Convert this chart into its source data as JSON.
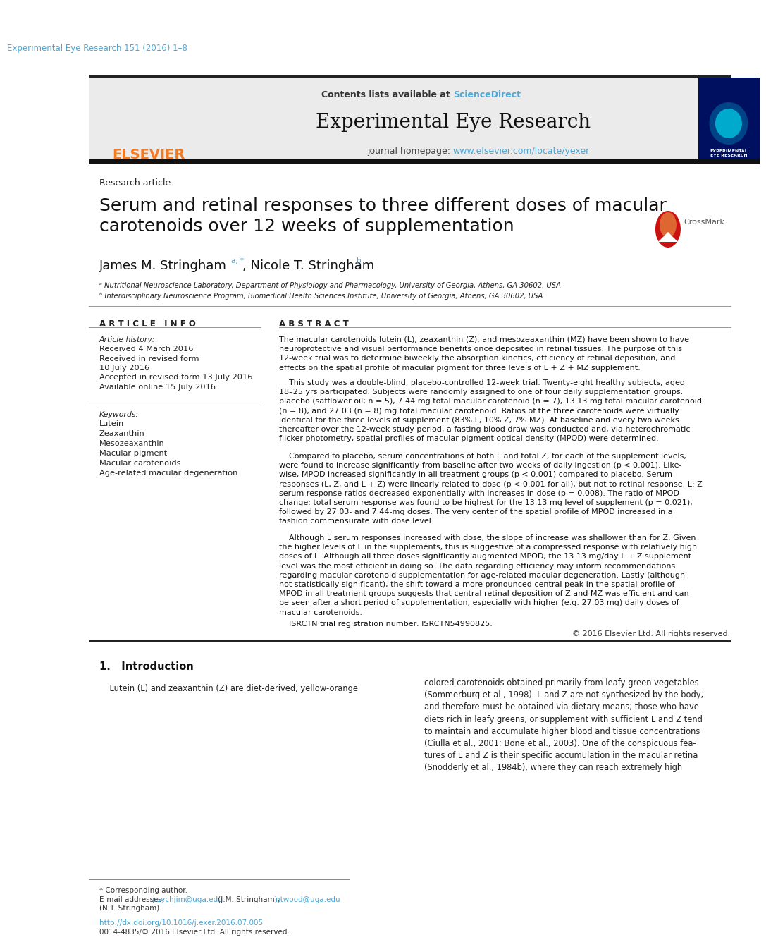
{
  "page_citation": "Experimental Eye Research 151 (2016) 1–8",
  "journal_name": "Experimental Eye Research",
  "contents_line": "Contents lists available at ScienceDirect",
  "homepage_prefix": "journal homepage: ",
  "homepage_url": "www.elsevier.com/locate/yexer",
  "article_type": "Research article",
  "title": "Serum and retinal responses to three different doses of macular\ncarotenoids over 12 weeks of supplementation",
  "authors": "James M. Stringham",
  "author_sup1": "a, *",
  "author2": ", Nicole T. Stringham",
  "author_sup2": "b",
  "affil_a": "ᵃ Nutritional Neuroscience Laboratory, Department of Physiology and Pharmacology, University of Georgia, Athens, GA 30602, USA",
  "affil_b": "ᵇ Interdisciplinary Neuroscience Program, Biomedical Health Sciences Institute, University of Georgia, Athens, GA 30602, USA",
  "article_info_header": "A R T I C L E   I N F O",
  "article_history_label": "Article history:",
  "history_lines": [
    "Received 4 March 2016",
    "Received in revised form",
    "10 July 2016",
    "Accepted in revised form 13 July 2016",
    "Available online 15 July 2016"
  ],
  "keywords_label": "Keywords:",
  "keywords": [
    "Lutein",
    "Zeaxanthin",
    "Mesozeaxanthin",
    "Macular pigment",
    "Macular carotenoids",
    "Age-related macular degeneration"
  ],
  "abstract_header": "A B S T R A C T",
  "abstract_p1": "The macular carotenoids lutein (L), zeaxanthin (Z), and mesozeaxanthin (MZ) have been shown to have\nneuroprotective and visual performance benefits once deposited in retinal tissues. The purpose of this\n12-week trial was to determine biweekly the absorption kinetics, efficiency of retinal deposition, and\neffects on the spatial profile of macular pigment for three levels of L + Z + MZ supplement.",
  "abstract_p2": "    This study was a double-blind, placebo-controlled 12-week trial. Twenty-eight healthy subjects, aged\n18–25 yrs participated. Subjects were randomly assigned to one of four daily supplementation groups:\nplacebo (safflower oil; n = 5), 7.44 mg total macular carotenoid (n = 7), 13.13 mg total macular carotenoid\n(n = 8), and 27.03 (n = 8) mg total macular carotenoid. Ratios of the three carotenoids were virtually\nidentical for the three levels of supplement (83% L, 10% Z, 7% MZ). At baseline and every two weeks\nthereafter over the 12-week study period, a fasting blood draw was conducted and, via heterochromatic\nflicker photometry, spatial profiles of macular pigment optical density (MPOD) were determined.",
  "abstract_p3": "    Compared to placebo, serum concentrations of both L and total Z, for each of the supplement levels,\nwere found to increase significantly from baseline after two weeks of daily ingestion (p < 0.001). Like-\nwise, MPOD increased significantly in all treatment groups (p < 0.001) compared to placebo. Serum\nresponses (L, Z, and L + Z) were linearly related to dose (p < 0.001 for all), but not to retinal response. L: Z\nserum response ratios decreased exponentially with increases in dose (p = 0.008). The ratio of MPOD\nchange: total serum response was found to be highest for the 13.13 mg level of supplement (p = 0.021),\nfollowed by 27.03- and 7.44-mg doses. The very center of the spatial profile of MPOD increased in a\nfashion commensurate with dose level.",
  "abstract_p4": "    Although L serum responses increased with dose, the slope of increase was shallower than for Z. Given\nthe higher levels of L in the supplements, this is suggestive of a compressed response with relatively high\ndoses of L. Although all three doses significantly augmented MPOD, the 13.13 mg/day L + Z supplement\nlevel was the most efficient in doing so. The data regarding efficiency may inform recommendations\nregarding macular carotenoid supplementation for age-related macular degeneration. Lastly (although\nnot statistically significant), the shift toward a more pronounced central peak in the spatial profile of\nMPOD in all treatment groups suggests that central retinal deposition of Z and MZ was efficient and can\nbe seen after a short period of supplementation, especially with higher (e.g. 27.03 mg) daily doses of\nmacular carotenoids.",
  "abstract_trial": "    ISRCTN trial registration number: ISRCTN54990825.",
  "abstract_copyright": "© 2016 Elsevier Ltd. All rights reserved.",
  "section_intro": "1.   Introduction",
  "intro_p1": "    Lutein (L) and zeaxanthin (Z) are diet-derived, yellow-orange",
  "intro_p2_right": "colored carotenoids obtained primarily from leafy-green vegetables\n(Sommerburg et al., 1998). L and Z are not synthesized by the body,\nand therefore must be obtained via dietary means; those who have\ndiets rich in leafy greens, or supplement with sufficient L and Z tend\nto maintain and accumulate higher blood and tissue concentrations\n(Ciulla et al., 2001; Bone et al., 2003). One of the conspicuous fea-\ntures of L and Z is their specific accumulation in the macular retina\n(Snodderly et al., 1984b), where they can reach extremely high",
  "footnote_star": "* Corresponding author.",
  "footnote_email_label": "E-mail addresses: ",
  "footnote_email1": "psychjim@uga.edu",
  "footnote_email1_name": " (J.M. Stringham), ",
  "footnote_email2": "ntwood@uga.edu",
  "footnote_nt": "(N.T. Stringham).",
  "doi_line": "http://dx.doi.org/10.1016/j.exer.2016.07.005",
  "issn_line": "0014-4835/© 2016 Elsevier Ltd. All rights reserved.",
  "bg_color": "#ffffff",
  "header_bg": "#ebebeb",
  "black_bar_color": "#111111",
  "link_color": "#4da6d4",
  "elsevier_orange": "#f47920",
  "text_color": "#000000"
}
